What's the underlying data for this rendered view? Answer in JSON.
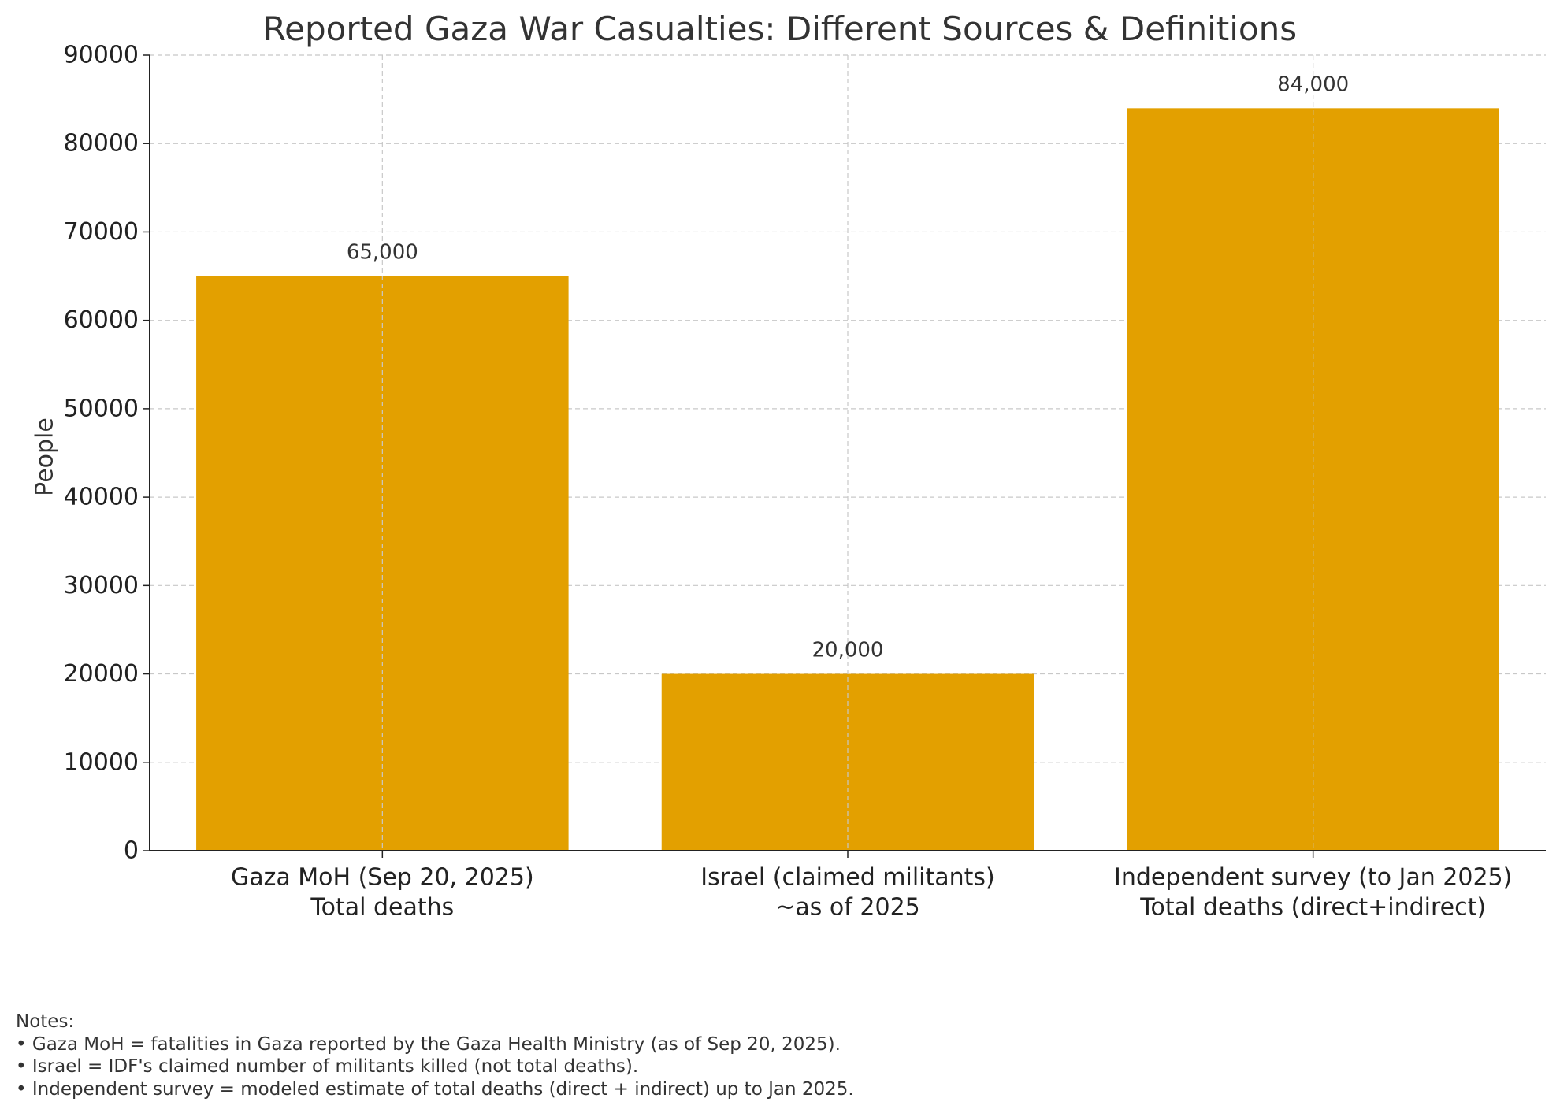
{
  "chart_data": {
    "type": "bar",
    "title": "Reported Gaza War Casualties: Different Sources & Definitions",
    "xlabel": "",
    "ylabel": "People",
    "ylim": [
      0,
      90000
    ],
    "yticks": [
      0,
      10000,
      20000,
      30000,
      40000,
      50000,
      60000,
      70000,
      80000,
      90000
    ],
    "grid": true,
    "bar_color": "#E3A000",
    "categories": [
      [
        "Gaza MoH (Sep 20, 2025)",
        "Total deaths"
      ],
      [
        "Israel (claimed militants)",
        "~as of 2025"
      ],
      [
        "Independent survey (to Jan 2025)",
        "Total deaths (direct+indirect)"
      ]
    ],
    "values": [
      65000,
      20000,
      84000
    ],
    "data_labels": [
      "65,000",
      "20,000",
      "84,000"
    ]
  },
  "notes": [
    "Notes:",
    "• Gaza MoH = fatalities in Gaza reported by the Gaza Health Ministry (as of Sep 20, 2025).",
    "• Israel = IDF's claimed number of militants killed (not total deaths).",
    "• Independent survey = modeled estimate of total deaths (direct + indirect) up to Jan 2025."
  ]
}
